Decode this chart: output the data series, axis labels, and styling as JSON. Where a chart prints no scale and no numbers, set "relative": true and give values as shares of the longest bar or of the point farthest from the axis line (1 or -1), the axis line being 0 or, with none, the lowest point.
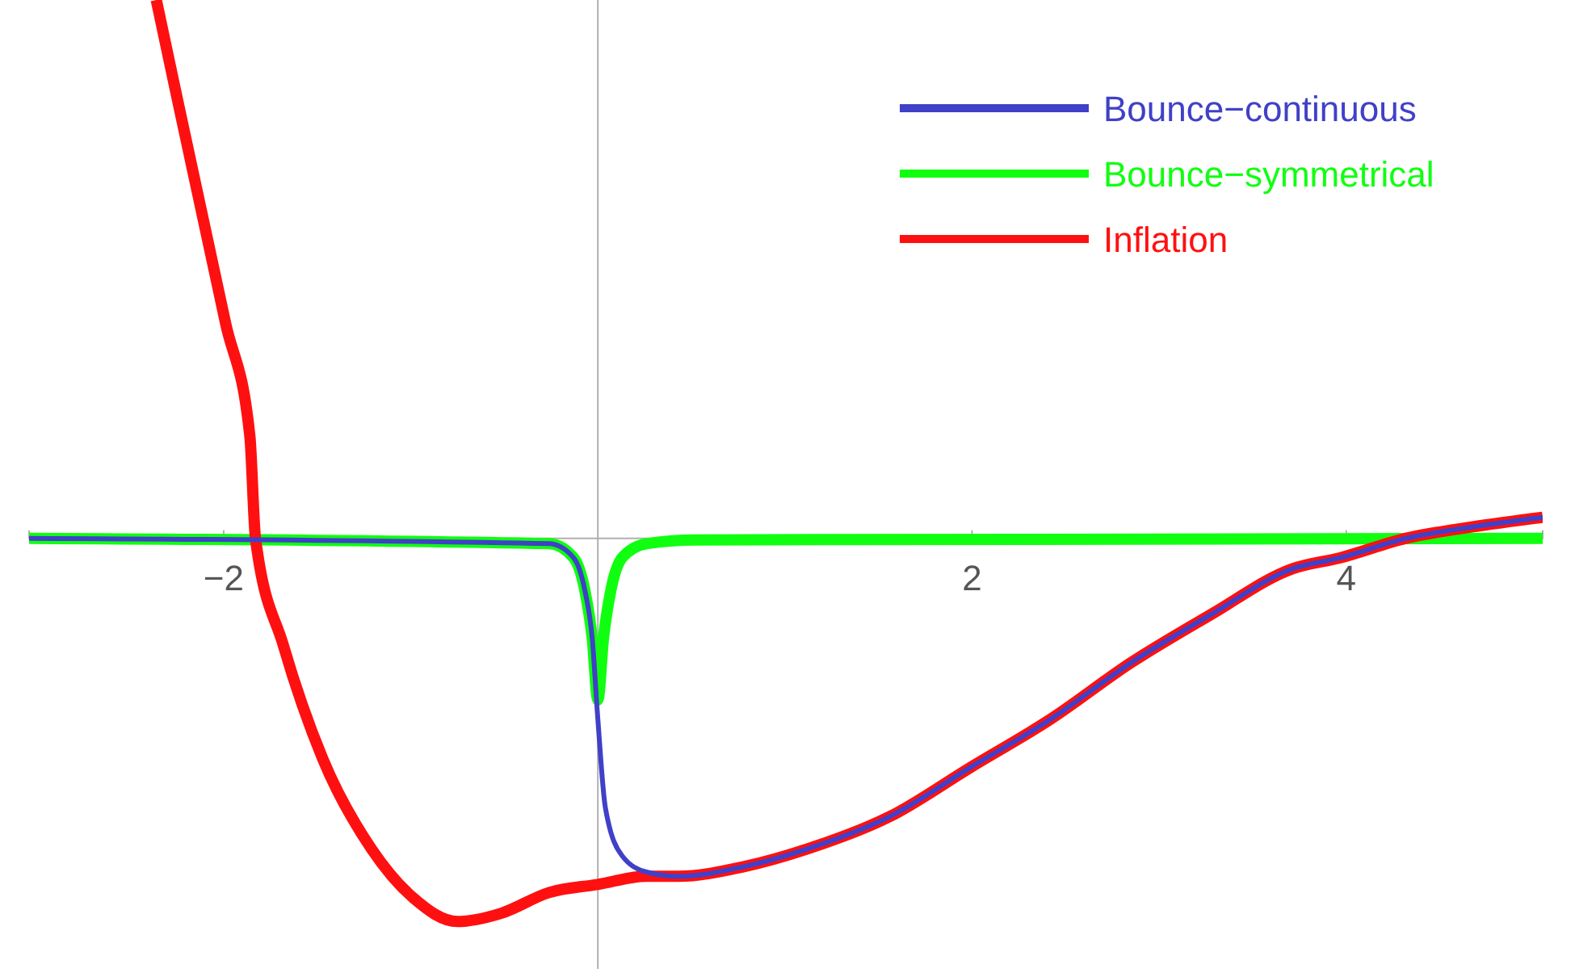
{
  "chart_data": {
    "type": "line",
    "relative": true,
    "legend": "top right",
    "grid": false,
    "marker": "none",
    "line_style": "solid",
    "xlim": [
      -3.04,
      5.05
    ],
    "xticks": [
      {
        "value": -2,
        "label": "−2"
      },
      2,
      4
    ],
    "series": [
      {
        "name": "Bounce−continuous",
        "color": "#4040c8",
        "x": [
          -3.04,
          -0.26,
          -0.13,
          -0.07,
          -0.03,
          0,
          0.04,
          0.13,
          0.26,
          0.43,
          0.78,
          1.12,
          1.56,
          1.99,
          2.42,
          2.85,
          3.28,
          3.71,
          3.97,
          4.32,
          4.67,
          5.05
        ],
        "values": [
          0,
          -0.01,
          -0.036,
          -0.096,
          -0.186,
          -0.336,
          -0.5,
          -0.59,
          -0.62,
          -0.628,
          -0.61,
          -0.577,
          -0.517,
          -0.426,
          -0.336,
          -0.231,
          -0.141,
          -0.057,
          -0.036,
          0,
          0.021,
          0.039
        ]
      },
      {
        "name": "Bounce−symmetrical",
        "color": "#10ff10",
        "x": [
          -3.04,
          -0.26,
          -0.13,
          -0.07,
          -0.03,
          0,
          0.03,
          0.07,
          0.13,
          0.26,
          0.52,
          5.05
        ],
        "values": [
          0,
          -0.01,
          -0.036,
          -0.096,
          -0.186,
          -0.3,
          -0.186,
          -0.096,
          -0.036,
          -0.01,
          -0.003,
          0
        ]
      },
      {
        "name": "Inflation",
        "color": "#ff1010",
        "x": [
          -2.36,
          -2.25,
          -2.12,
          -1.99,
          -1.86,
          -1.83,
          -1.68,
          -1.47,
          -1.21,
          -0.99,
          -0.75,
          -0.52,
          -0.26,
          0,
          0.26,
          0.43,
          0.78,
          1.12,
          1.56,
          1.99,
          2.42,
          2.85,
          3.28,
          3.71,
          3.97,
          4.32,
          4.67,
          5.05
        ],
        "values": [
          1,
          0.82,
          0.61,
          0.4,
          0.19,
          0,
          -0.2,
          -0.41,
          -0.577,
          -0.667,
          -0.712,
          -0.697,
          -0.658,
          -0.643,
          -0.628,
          -0.628,
          -0.61,
          -0.577,
          -0.517,
          -0.426,
          -0.336,
          -0.231,
          -0.141,
          -0.057,
          -0.036,
          0,
          0.021,
          0.039
        ]
      }
    ]
  }
}
